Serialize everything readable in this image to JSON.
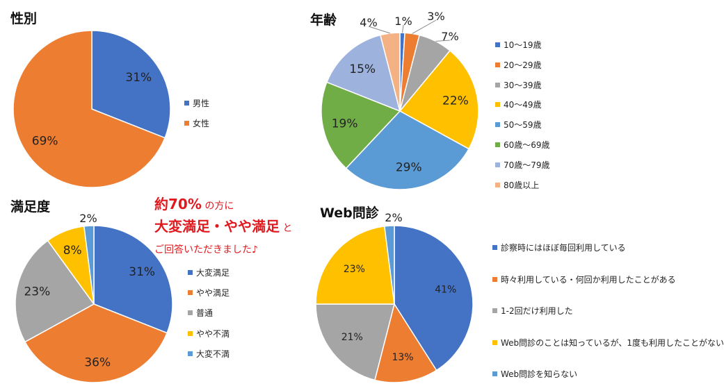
{
  "note": {
    "line1_strong": "約70%",
    "line1_rest": " の方に",
    "line2_strong": "大変満足・やや満足",
    "line2_rest": " と",
    "line3": "ご回答いただきました♪"
  },
  "chart_data": [
    {
      "id": "gender",
      "type": "pie",
      "title": "性別",
      "categories": [
        "男性",
        "女性"
      ],
      "values": [
        31,
        69
      ],
      "data_labels": [
        "31%",
        "69%"
      ],
      "colors": [
        "#4472C4",
        "#ED7D31"
      ],
      "legend": "right"
    },
    {
      "id": "age",
      "type": "pie",
      "title": "年齢",
      "categories": [
        "10～19歳",
        "20～29歳",
        "30～39歳",
        "40～49歳",
        "50～59歳",
        "60歳～69歳",
        "70歳～79歳",
        "80歳以上"
      ],
      "values": [
        1,
        3,
        7,
        22,
        29,
        19,
        15,
        4
      ],
      "data_labels": [
        "1%",
        "3%",
        "7%",
        "22%",
        "29%",
        "19%",
        "15%",
        "4%"
      ],
      "colors": [
        "#4472C4",
        "#ED7D31",
        "#A5A5A5",
        "#FFC000",
        "#5B9BD5",
        "#70AD47",
        "#9EB2DE",
        "#F4B183"
      ],
      "legend": "right"
    },
    {
      "id": "satisfaction",
      "type": "pie",
      "title": "満足度",
      "categories": [
        "大変満足",
        "やや満足",
        "普通",
        "やや不満",
        "大変不満"
      ],
      "values": [
        31,
        36,
        23,
        8,
        2
      ],
      "data_labels": [
        "31%",
        "36%",
        "23%",
        "8%",
        "2%"
      ],
      "colors": [
        "#4472C4",
        "#ED7D31",
        "#A5A5A5",
        "#FFC000",
        "#5B9BD5"
      ],
      "legend": "right"
    },
    {
      "id": "web",
      "type": "pie",
      "title": "Web問診",
      "categories": [
        "診察時にはほぼ毎回利用している",
        "時々利用している・何回か利用したことがある",
        "1-2回だけ利用した",
        "Web問診のことは知っているが、1度も利用したことがない",
        "Web問診を知らない"
      ],
      "values": [
        41,
        13,
        21,
        23,
        2
      ],
      "data_labels": [
        "41%",
        "13%",
        "21%",
        "23%",
        "2%"
      ],
      "colors": [
        "#4472C4",
        "#ED7D31",
        "#A5A5A5",
        "#FFC000",
        "#5B9BD5"
      ],
      "legend": "right"
    }
  ]
}
